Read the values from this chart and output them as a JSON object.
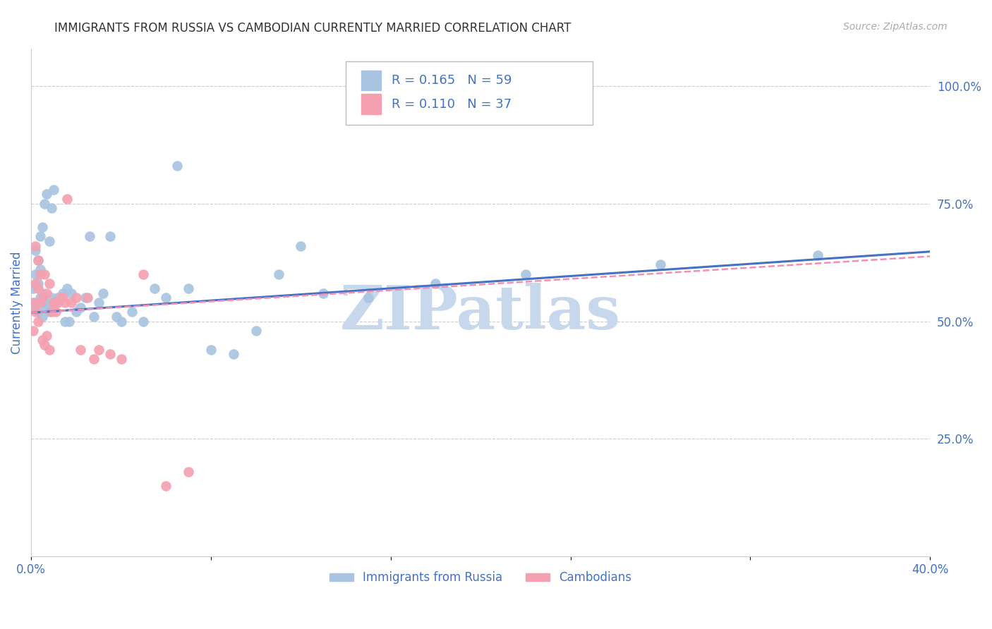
{
  "title": "IMMIGRANTS FROM RUSSIA VS CAMBODIAN CURRENTLY MARRIED CORRELATION CHART",
  "source": "Source: ZipAtlas.com",
  "ylabel": "Currently Married",
  "right_yticks": [
    "100.0%",
    "75.0%",
    "50.0%",
    "25.0%"
  ],
  "right_ytick_vals": [
    1.0,
    0.75,
    0.5,
    0.25
  ],
  "legend_russia_r": "R = 0.165",
  "legend_russia_n": "N = 59",
  "legend_cambodia_r": "R = 0.110",
  "legend_cambodia_n": "N = 37",
  "color_russia": "#a8c4e0",
  "color_cambodia": "#f4a0b0",
  "color_trendline_russia": "#4472c4",
  "color_trendline_cambodia": "#f48fb1",
  "color_axis_text": "#4472c4",
  "color_grid": "#cccccc",
  "watermark_text": "ZIPatlas",
  "watermark_color": "#c8d8ec",
  "russia_x": [
    0.001,
    0.001,
    0.002,
    0.002,
    0.002,
    0.003,
    0.003,
    0.003,
    0.004,
    0.004,
    0.004,
    0.005,
    0.005,
    0.005,
    0.006,
    0.006,
    0.007,
    0.007,
    0.008,
    0.008,
    0.009,
    0.009,
    0.01,
    0.01,
    0.011,
    0.012,
    0.013,
    0.014,
    0.015,
    0.016,
    0.017,
    0.018,
    0.02,
    0.022,
    0.024,
    0.026,
    0.028,
    0.03,
    0.032,
    0.035,
    0.038,
    0.04,
    0.045,
    0.05,
    0.055,
    0.06,
    0.065,
    0.07,
    0.08,
    0.09,
    0.1,
    0.11,
    0.12,
    0.13,
    0.15,
    0.18,
    0.22,
    0.28,
    0.35
  ],
  "russia_y": [
    0.53,
    0.57,
    0.54,
    0.6,
    0.65,
    0.52,
    0.58,
    0.63,
    0.55,
    0.61,
    0.68,
    0.51,
    0.56,
    0.7,
    0.54,
    0.75,
    0.53,
    0.77,
    0.52,
    0.67,
    0.55,
    0.74,
    0.54,
    0.78,
    0.54,
    0.55,
    0.55,
    0.56,
    0.5,
    0.57,
    0.5,
    0.56,
    0.52,
    0.53,
    0.55,
    0.68,
    0.51,
    0.54,
    0.56,
    0.68,
    0.51,
    0.5,
    0.52,
    0.5,
    0.57,
    0.55,
    0.83,
    0.57,
    0.44,
    0.43,
    0.48,
    0.6,
    0.66,
    0.56,
    0.55,
    0.58,
    0.6,
    0.62,
    0.64
  ],
  "cambodia_x": [
    0.001,
    0.001,
    0.002,
    0.002,
    0.002,
    0.003,
    0.003,
    0.003,
    0.004,
    0.004,
    0.005,
    0.005,
    0.006,
    0.006,
    0.007,
    0.007,
    0.008,
    0.008,
    0.009,
    0.01,
    0.011,
    0.012,
    0.013,
    0.014,
    0.015,
    0.016,
    0.018,
    0.02,
    0.022,
    0.025,
    0.028,
    0.03,
    0.035,
    0.04,
    0.05,
    0.06,
    0.07
  ],
  "cambodia_y": [
    0.54,
    0.48,
    0.52,
    0.58,
    0.66,
    0.5,
    0.57,
    0.63,
    0.54,
    0.6,
    0.46,
    0.55,
    0.45,
    0.6,
    0.47,
    0.56,
    0.44,
    0.58,
    0.52,
    0.54,
    0.52,
    0.54,
    0.55,
    0.55,
    0.54,
    0.76,
    0.54,
    0.55,
    0.44,
    0.55,
    0.42,
    0.44,
    0.43,
    0.42,
    0.6,
    0.15,
    0.18
  ],
  "russia_trend_x": [
    0.0,
    0.4
  ],
  "russia_trend_y": [
    0.518,
    0.648
  ],
  "cambodia_trend_x": [
    0.0,
    0.4
  ],
  "cambodia_trend_y": [
    0.518,
    0.638
  ],
  "xlim": [
    0.0,
    0.4
  ],
  "ylim": [
    0.0,
    1.08
  ],
  "xticks": [
    0.0,
    0.08,
    0.16,
    0.24,
    0.32,
    0.4
  ],
  "xtick_labels": [
    "0.0%",
    "",
    "",
    "",
    "",
    "40.0%"
  ]
}
